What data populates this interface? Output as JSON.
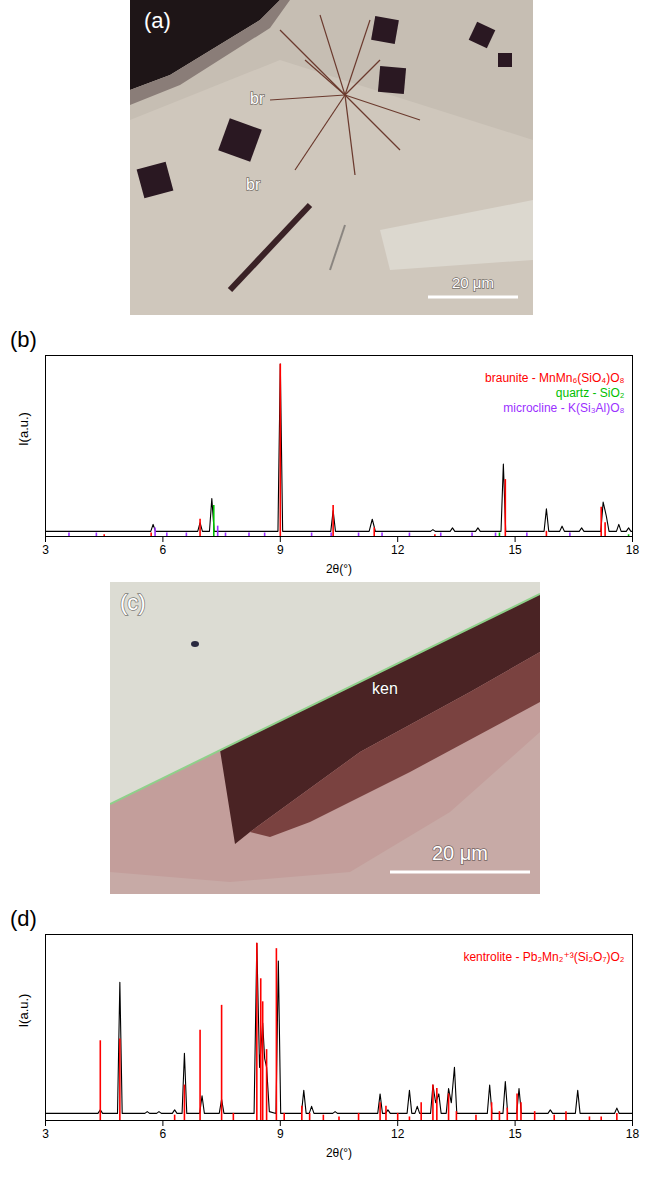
{
  "chart_data": [
    {
      "type": "xrd",
      "panel": "(b)",
      "xlabel": "2θ(°)",
      "ylabel": "I(a.u.)",
      "xlim": [
        3,
        18
      ],
      "xticks": [
        3,
        6,
        9,
        12,
        15,
        18
      ],
      "ylim": [
        0,
        1.05
      ],
      "tick_labels": "x",
      "grid": false,
      "legend": "upper right",
      "series": [
        {
          "type": "line",
          "color": "#000000",
          "x": [
            3,
            5.69,
            5.75,
            5.81,
            6.89,
            6.95,
            7.01,
            7.19,
            7.25,
            7.31,
            8.94,
            9.0,
            9.06,
            10.29,
            10.35,
            10.41,
            11.27,
            11.35,
            11.43,
            12.84,
            12.9,
            12.96,
            13.34,
            13.4,
            13.46,
            13.99,
            14.05,
            14.11,
            14.64,
            14.7,
            14.76,
            15.74,
            15.8,
            15.86,
            16.14,
            16.2,
            16.26,
            16.64,
            16.7,
            16.76,
            17.19,
            17.25,
            17.33,
            17.4,
            17.59,
            17.65,
            17.71,
            17.84,
            17.9,
            17.96,
            18
          ],
          "values": [
            0.03,
            0.03,
            0.07,
            0.03,
            0.03,
            0.08,
            0.03,
            0.03,
            0.22,
            0.03,
            0.03,
            1.0,
            0.03,
            0.03,
            0.15,
            0.03,
            0.03,
            0.1,
            0.03,
            0.03,
            0.04,
            0.03,
            0.03,
            0.05,
            0.03,
            0.03,
            0.05,
            0.03,
            0.03,
            0.42,
            0.03,
            0.03,
            0.16,
            0.03,
            0.03,
            0.06,
            0.03,
            0.03,
            0.05,
            0.03,
            0.03,
            0.2,
            0.12,
            0.03,
            0.03,
            0.07,
            0.03,
            0.03,
            0.05,
            0.03,
            0.03
          ]
        },
        {
          "name": "braunite - MnMn₆(SiO₄)O₈",
          "type": "stick",
          "color": "#ff0000",
          "x": [
            4.5,
            5.7,
            6.95,
            9.0,
            10.35,
            11.4,
            12.95,
            14.75,
            15.8,
            17.2,
            17.3
          ],
          "values": [
            0.01,
            0.02,
            0.1,
            1.0,
            0.18,
            0.05,
            0.01,
            0.33,
            0.03,
            0.17,
            0.08
          ]
        },
        {
          "name": "quartz - SiO₂",
          "type": "stick",
          "color": "#00c000",
          "x": [
            7.3,
            14.6,
            17.9
          ],
          "values": [
            0.18,
            0.02,
            0.01
          ]
        },
        {
          "name": "microcline - K(Si₃Al)O₈",
          "type": "stick",
          "color": "#9b30ff",
          "x": [
            3.6,
            4.3,
            5.8,
            6.1,
            6.6,
            7.4,
            7.6,
            8.2,
            8.6,
            9.8,
            10.3,
            11.0,
            11.6,
            12.3,
            13.1,
            13.9,
            14.5,
            15.3,
            16.4
          ],
          "values": [
            0.02,
            0.02,
            0.05,
            0.02,
            0.02,
            0.06,
            0.02,
            0.02,
            0.02,
            0.02,
            0.02,
            0.02,
            0.02,
            0.02,
            0.02,
            0.02,
            0.02,
            0.02,
            0.02
          ]
        }
      ]
    },
    {
      "type": "xrd",
      "panel": "(d)",
      "xlabel": "2θ(°)",
      "ylabel": "I(a.u.)",
      "xlim": [
        3,
        18
      ],
      "xticks": [
        3,
        6,
        9,
        12,
        15,
        18
      ],
      "ylim": [
        0,
        1.05
      ],
      "tick_labels": "x",
      "grid": false,
      "legend": "upper right",
      "series": [
        {
          "type": "line",
          "color": "#000000",
          "x": [
            3,
            4.34,
            4.4,
            4.46,
            4.84,
            4.9,
            4.96,
            5.54,
            5.6,
            5.66,
            5.84,
            5.9,
            5.96,
            6.24,
            6.3,
            6.36,
            6.49,
            6.55,
            6.61,
            6.94,
            7.0,
            7.06,
            7.44,
            7.5,
            7.56,
            8.33,
            8.4,
            8.47,
            8.55,
            8.6,
            8.65,
            8.72,
            8.89,
            8.95,
            9.01,
            9.54,
            9.6,
            9.66,
            9.74,
            9.8,
            9.86,
            10.34,
            10.4,
            10.46,
            11.49,
            11.55,
            11.61,
            11.69,
            11.75,
            11.81,
            12.24,
            12.3,
            12.36,
            12.44,
            12.5,
            12.56,
            12.84,
            12.9,
            12.97,
            13.05,
            13.11,
            13.24,
            13.3,
            13.37,
            13.45,
            13.51,
            14.29,
            14.35,
            14.41,
            14.69,
            14.75,
            14.81,
            15.04,
            15.1,
            15.16,
            15.84,
            15.9,
            15.96,
            16.54,
            16.6,
            16.66,
            17.54,
            17.6,
            17.66,
            18
          ],
          "values": [
            0.04,
            0.04,
            0.06,
            0.04,
            0.04,
            0.78,
            0.04,
            0.04,
            0.05,
            0.04,
            0.04,
            0.05,
            0.04,
            0.04,
            0.06,
            0.04,
            0.04,
            0.38,
            0.04,
            0.04,
            0.14,
            0.04,
            0.04,
            0.12,
            0.04,
            0.04,
            1.0,
            0.3,
            0.55,
            0.35,
            0.3,
            0.05,
            0.04,
            0.9,
            0.04,
            0.04,
            0.17,
            0.04,
            0.04,
            0.08,
            0.04,
            0.04,
            0.05,
            0.04,
            0.04,
            0.15,
            0.04,
            0.04,
            0.06,
            0.04,
            0.04,
            0.17,
            0.04,
            0.04,
            0.08,
            0.04,
            0.04,
            0.2,
            0.1,
            0.15,
            0.04,
            0.04,
            0.18,
            0.1,
            0.3,
            0.04,
            0.04,
            0.2,
            0.04,
            0.04,
            0.22,
            0.04,
            0.04,
            0.18,
            0.04,
            0.04,
            0.06,
            0.04,
            0.04,
            0.17,
            0.04,
            0.04,
            0.07,
            0.04,
            0.04
          ]
        },
        {
          "name": "kentrolite - Pb₂Mn₂⁺³(Si₂O₇)O₂",
          "type": "stick",
          "color": "#ff0000",
          "x": [
            4.4,
            4.9,
            6.3,
            6.55,
            6.95,
            7.5,
            7.8,
            8.4,
            8.5,
            8.55,
            8.65,
            8.9,
            9.1,
            9.55,
            9.75,
            10.1,
            10.5,
            11.0,
            11.55,
            11.7,
            12.0,
            12.3,
            12.6,
            12.9,
            13.0,
            13.3,
            13.5,
            14.0,
            14.4,
            14.6,
            14.8,
            15.05,
            15.15,
            15.5,
            16.0,
            16.3,
            16.9,
            17.2,
            17.6
          ],
          "values": [
            0.45,
            0.46,
            0.03,
            0.2,
            0.51,
            0.65,
            0.04,
            1.0,
            0.8,
            0.67,
            0.4,
            0.97,
            0.04,
            0.08,
            0.04,
            0.03,
            0.02,
            0.04,
            0.1,
            0.08,
            0.04,
            0.02,
            0.1,
            0.2,
            0.18,
            0.15,
            0.05,
            0.03,
            0.1,
            0.05,
            0.07,
            0.15,
            0.1,
            0.05,
            0.03,
            0.05,
            0.02,
            0.02,
            0.04
          ]
        }
      ]
    }
  ],
  "images": [
    {
      "panel": "(a)",
      "labels": [
        "br",
        "br"
      ],
      "scale_bar": "20 μm"
    },
    {
      "panel": "(c)",
      "labels": [
        "ken"
      ],
      "scale_bar": "20 μm"
    }
  ]
}
